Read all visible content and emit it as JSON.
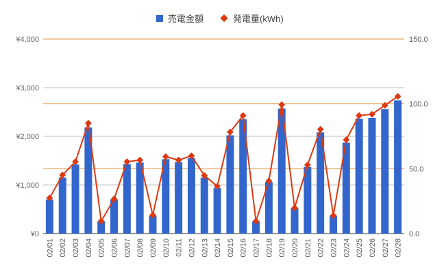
{
  "chart_data": {
    "type": "bar",
    "categories": [
      "02/01",
      "02/02",
      "02/03",
      "02/04",
      "02/05",
      "02/06",
      "02/07",
      "02/08",
      "02/09",
      "02/10",
      "02/11",
      "02/12",
      "02/13",
      "02/14",
      "02/15",
      "02/16",
      "02/17",
      "02/18",
      "02/19",
      "02/20",
      "02/21",
      "02/22",
      "02/23",
      "02/24",
      "02/25",
      "02/26",
      "02/27",
      "02/28"
    ],
    "series": [
      {
        "name": "売電金額",
        "type": "bar",
        "axis": "left",
        "color": "#3366cc",
        "values": [
          700,
          1150,
          1420,
          2180,
          250,
          700,
          1430,
          1460,
          370,
          1530,
          1470,
          1550,
          1150,
          940,
          2020,
          2350,
          250,
          1060,
          2570,
          520,
          1370,
          2080,
          360,
          1870,
          2360,
          2380,
          2560,
          2740
        ]
      },
      {
        "name": "発電量(kWh)",
        "type": "line",
        "axis": "right",
        "color": "#dc3912",
        "marker": "diamond",
        "values": [
          27.5,
          45.2,
          55.4,
          85.1,
          9.6,
          26.7,
          55.4,
          56.7,
          14.3,
          59.3,
          56.7,
          60.0,
          44.8,
          36.5,
          78.3,
          91.0,
          9.6,
          40.6,
          99.4,
          19.9,
          52.9,
          80.4,
          13.9,
          72.3,
          91.0,
          92.0,
          98.9,
          105.8
        ]
      }
    ],
    "y_left": {
      "ticks": [
        "¥0",
        "¥1,000",
        "¥2,000",
        "¥3,000",
        "¥4,000"
      ],
      "ylim": [
        0,
        4000
      ]
    },
    "y_right": {
      "ticks": [
        "0.0",
        "50.0",
        "100.0",
        "150.0"
      ],
      "ylim": [
        0,
        150
      ]
    },
    "legend_position": "top-center",
    "grid": true,
    "colors": {
      "left_grid": "#bdbdbd",
      "right_grid": "#e69138",
      "axis_label": "#616161"
    }
  }
}
